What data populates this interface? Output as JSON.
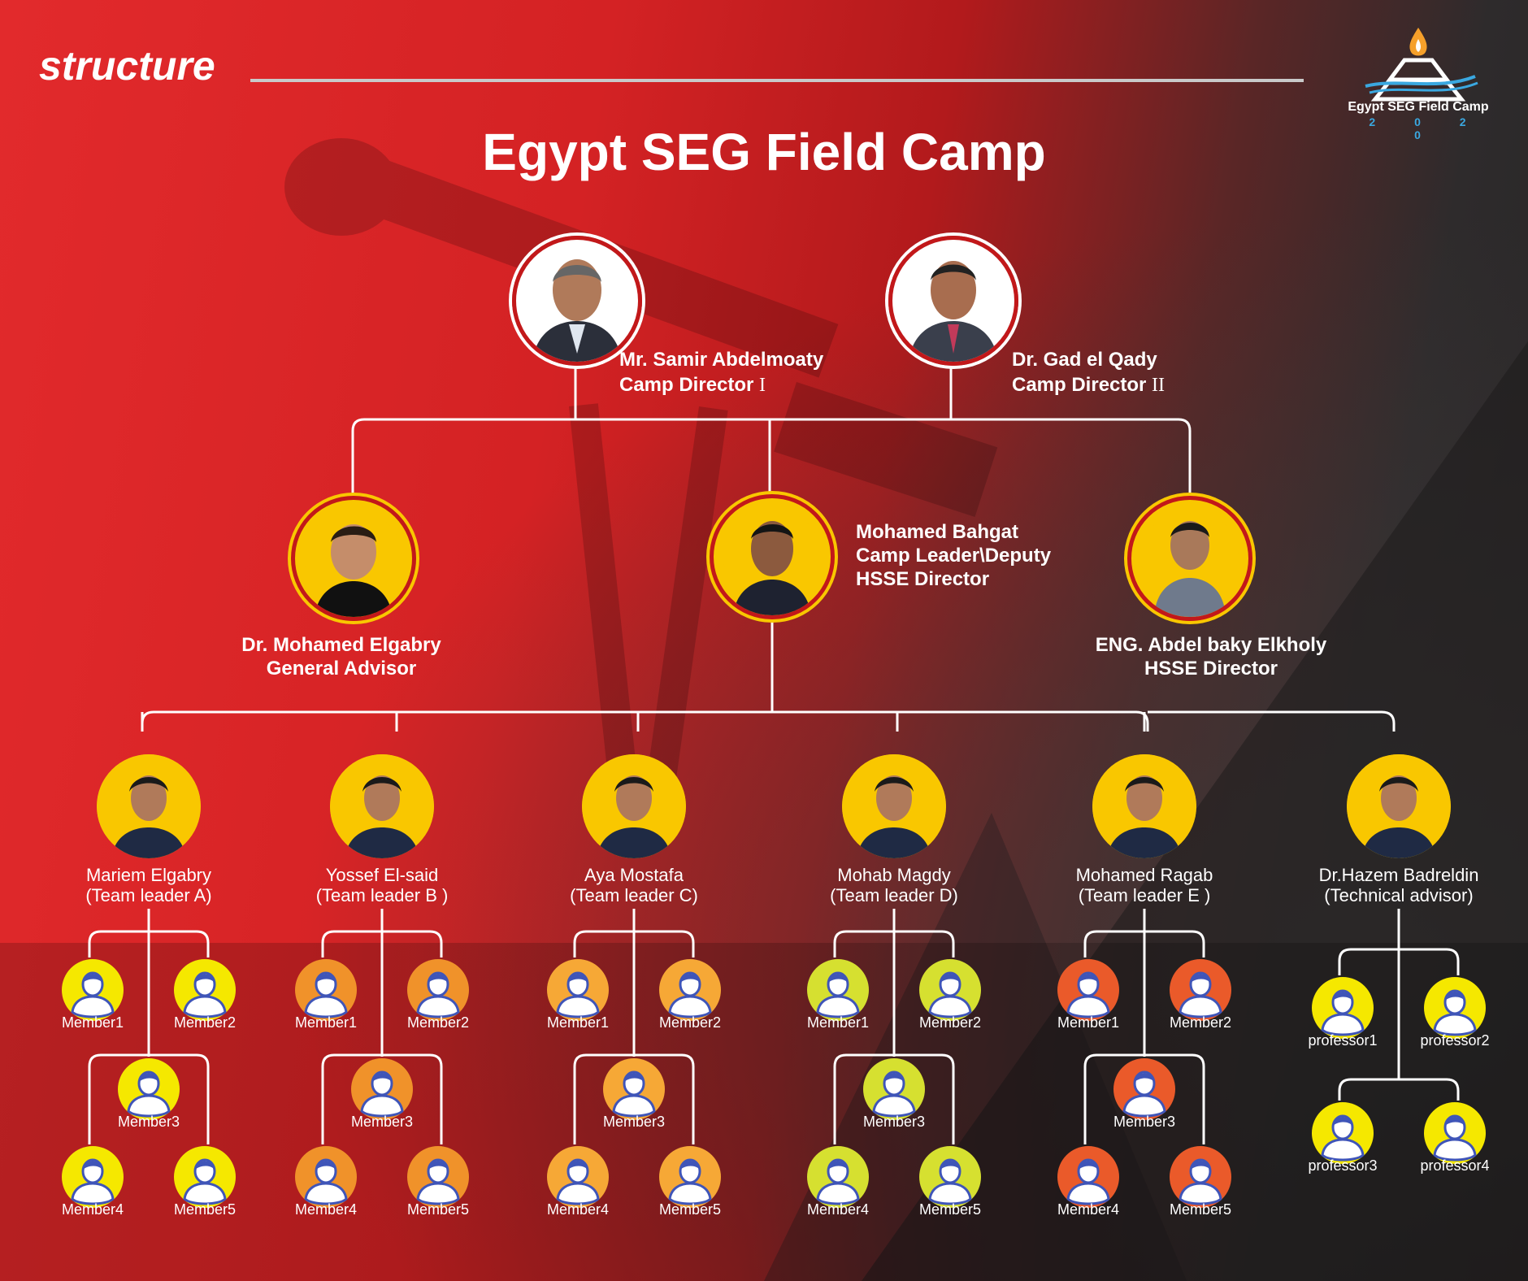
{
  "header": {
    "section_title": "structure",
    "main_title": "Egypt SEG Field Camp"
  },
  "logo": {
    "name": "Egypt SEG Field Camp",
    "year": "2 0 2 0",
    "icon": "pyramid-flame-logo"
  },
  "directors": [
    {
      "name": "Mr. Samir Abdelmoaty",
      "role": "Camp Director",
      "numeral": "I"
    },
    {
      "name": "Dr. Gad el Qady",
      "role": "Camp Director",
      "numeral": "II"
    }
  ],
  "second_level": [
    {
      "name": "Dr. Mohamed Elgabry",
      "role": "General Advisor"
    },
    {
      "name": "Mohamed Bahgat",
      "role": "Camp Leader\\Deputy",
      "role2": "HSSE Director"
    },
    {
      "name": "ENG. Abdel baky Elkholy",
      "role": "HSSE Director"
    }
  ],
  "team_leaders": [
    {
      "name": "Mariem Elgabry",
      "role": "(Team leader A)",
      "color": "#f5e800",
      "members": [
        "Member1",
        "Member2",
        "Member3",
        "Member4",
        "Member5"
      ]
    },
    {
      "name": "Yossef El-said",
      "role": "(Team leader B )",
      "color": "#f0922a",
      "members": [
        "Member1",
        "Member2",
        "Member3",
        "Member4",
        "Member5"
      ]
    },
    {
      "name": "Aya Mostafa",
      "role": "(Team leader C)",
      "color": "#f6a836",
      "members": [
        "Member1",
        "Member2",
        "Member3",
        "Member4",
        "Member5"
      ]
    },
    {
      "name": "Mohab Magdy",
      "role": "(Team leader D)",
      "color": "#d6e030",
      "members": [
        "Member1",
        "Member2",
        "Member3",
        "Member4",
        "Member5"
      ]
    },
    {
      "name": "Mohamed Ragab",
      "role": "(Team leader E )",
      "color": "#ea5a2a",
      "members": [
        "Member1",
        "Member2",
        "Member3",
        "Member4",
        "Member5"
      ]
    },
    {
      "name": "Dr.Hazem Badreldin",
      "role": "(Technical advisor)",
      "color": "#f5e800",
      "members": [
        "professor1",
        "professor2",
        "professor3",
        "professor4"
      ]
    }
  ],
  "colors": {
    "gold": "#f9c700",
    "ring_red": "#c2181a",
    "connector": "#ffffff",
    "avatar_head": "#3f55b8"
  }
}
